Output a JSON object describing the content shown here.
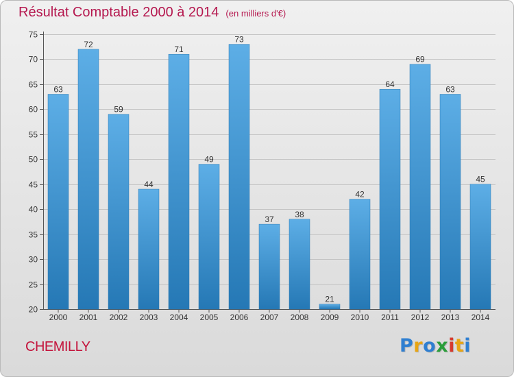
{
  "title": "Résultat Comptable 2000 à 2014",
  "subtitle": "(en milliers d'€)",
  "commune": "CHEMILLY",
  "brand": {
    "letters": [
      "P",
      "r",
      "o",
      "x",
      "i",
      "t",
      "i"
    ],
    "colors": [
      "#2f7fd1",
      "#e8a514",
      "#2f7fd1",
      "#2a9d3a",
      "#d63a2e",
      "#e8a514",
      "#2f7fd1"
    ]
  },
  "colors": {
    "title": "#b5184f",
    "bar_light": "#5daee6",
    "bar_dark": "#2578b5"
  },
  "chart_data": {
    "type": "bar",
    "categories": [
      "2000",
      "2001",
      "2002",
      "2003",
      "2004",
      "2005",
      "2006",
      "2007",
      "2008",
      "2009",
      "2010",
      "2011",
      "2012",
      "2013",
      "2014"
    ],
    "values": [
      63,
      72,
      59,
      44,
      71,
      49,
      73,
      37,
      38,
      21,
      42,
      64,
      69,
      63,
      45
    ],
    "ylim": [
      20,
      75
    ],
    "yticks": [
      20,
      25,
      30,
      35,
      40,
      45,
      50,
      55,
      60,
      65,
      70,
      75
    ],
    "grid": true,
    "legend": "none"
  }
}
